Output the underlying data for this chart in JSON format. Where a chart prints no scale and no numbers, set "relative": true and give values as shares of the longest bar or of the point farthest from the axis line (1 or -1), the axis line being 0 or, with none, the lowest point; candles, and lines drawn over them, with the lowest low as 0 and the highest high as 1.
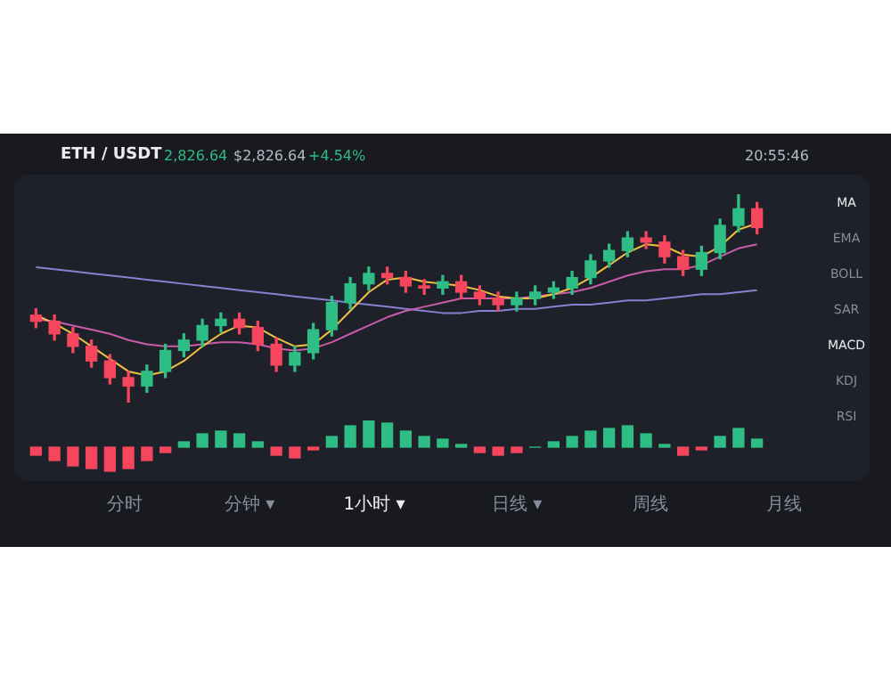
{
  "chart_data": [
    {
      "type": "candlestick",
      "title": "ETH / USDT",
      "relative": true,
      "grid": false,
      "legend": false,
      "categories": [
        null,
        null,
        null,
        null,
        null,
        null,
        null,
        null,
        null,
        null,
        null,
        null,
        null,
        null,
        null,
        null,
        null,
        null,
        null,
        null,
        null,
        null,
        null,
        null,
        null,
        null,
        null,
        null,
        null,
        null,
        null,
        null,
        null,
        null,
        null,
        null,
        null,
        null,
        null,
        null
      ],
      "ohlc": [
        [
          0.42,
          0.45,
          0.36,
          0.39
        ],
        [
          0.39,
          0.42,
          0.3,
          0.33
        ],
        [
          0.33,
          0.36,
          0.24,
          0.27
        ],
        [
          0.27,
          0.3,
          0.17,
          0.2
        ],
        [
          0.2,
          0.23,
          0.09,
          0.12
        ],
        [
          0.12,
          0.15,
          0.0,
          0.08
        ],
        [
          0.08,
          0.18,
          0.05,
          0.15
        ],
        [
          0.15,
          0.28,
          0.12,
          0.25
        ],
        [
          0.25,
          0.33,
          0.22,
          0.3
        ],
        [
          0.3,
          0.4,
          0.27,
          0.37
        ],
        [
          0.37,
          0.43,
          0.34,
          0.4
        ],
        [
          0.4,
          0.43,
          0.33,
          0.36
        ],
        [
          0.36,
          0.39,
          0.25,
          0.28
        ],
        [
          0.28,
          0.31,
          0.15,
          0.18
        ],
        [
          0.18,
          0.27,
          0.15,
          0.24
        ],
        [
          0.24,
          0.38,
          0.21,
          0.35
        ],
        [
          0.35,
          0.51,
          0.32,
          0.48
        ],
        [
          0.48,
          0.6,
          0.45,
          0.57
        ],
        [
          0.57,
          0.65,
          0.54,
          0.62
        ],
        [
          0.62,
          0.65,
          0.57,
          0.6
        ],
        [
          0.6,
          0.63,
          0.53,
          0.56
        ],
        [
          0.56,
          0.59,
          0.52,
          0.55
        ],
        [
          0.55,
          0.61,
          0.52,
          0.58
        ],
        [
          0.58,
          0.61,
          0.5,
          0.53
        ],
        [
          0.53,
          0.56,
          0.47,
          0.5
        ],
        [
          0.5,
          0.53,
          0.44,
          0.47
        ],
        [
          0.47,
          0.53,
          0.44,
          0.5
        ],
        [
          0.5,
          0.56,
          0.47,
          0.53
        ],
        [
          0.53,
          0.58,
          0.5,
          0.55
        ],
        [
          0.55,
          0.63,
          0.52,
          0.6
        ],
        [
          0.6,
          0.71,
          0.57,
          0.68
        ],
        [
          0.68,
          0.76,
          0.65,
          0.73
        ],
        [
          0.73,
          0.82,
          0.7,
          0.79
        ],
        [
          0.79,
          0.82,
          0.74,
          0.77
        ],
        [
          0.77,
          0.8,
          0.67,
          0.7
        ],
        [
          0.7,
          0.73,
          0.61,
          0.64
        ],
        [
          0.64,
          0.75,
          0.61,
          0.72
        ],
        [
          0.72,
          0.88,
          0.69,
          0.85
        ],
        [
          0.85,
          1.0,
          0.82,
          0.93
        ],
        [
          0.93,
          0.96,
          0.81,
          0.84
        ]
      ],
      "series": [
        {
          "type": "line",
          "color": "#f0c040",
          "values": [
            0.42,
            0.38,
            0.33,
            0.27,
            0.21,
            0.15,
            0.13,
            0.15,
            0.2,
            0.27,
            0.33,
            0.37,
            0.36,
            0.31,
            0.27,
            0.28,
            0.35,
            0.44,
            0.53,
            0.59,
            0.6,
            0.58,
            0.57,
            0.56,
            0.54,
            0.51,
            0.5,
            0.5,
            0.52,
            0.55,
            0.6,
            0.66,
            0.72,
            0.76,
            0.75,
            0.71,
            0.7,
            0.75,
            0.83,
            0.86
          ]
        },
        {
          "type": "line",
          "color": "#c85ca8",
          "values": [
            0.4,
            0.39,
            0.37,
            0.35,
            0.33,
            0.3,
            0.28,
            0.27,
            0.27,
            0.28,
            0.29,
            0.29,
            0.28,
            0.26,
            0.25,
            0.26,
            0.29,
            0.33,
            0.37,
            0.41,
            0.44,
            0.46,
            0.48,
            0.5,
            0.5,
            0.5,
            0.5,
            0.51,
            0.52,
            0.53,
            0.55,
            0.58,
            0.61,
            0.63,
            0.64,
            0.64,
            0.66,
            0.7,
            0.74,
            0.76
          ]
        },
        {
          "type": "line",
          "color": "#8a7fd0",
          "values": [
            0.65,
            0.64,
            0.63,
            0.62,
            0.61,
            0.6,
            0.59,
            0.58,
            0.57,
            0.56,
            0.55,
            0.54,
            0.53,
            0.52,
            0.51,
            0.5,
            0.49,
            0.48,
            0.47,
            0.46,
            0.45,
            0.44,
            0.43,
            0.43,
            0.44,
            0.44,
            0.45,
            0.45,
            0.46,
            0.47,
            0.47,
            0.48,
            0.49,
            0.49,
            0.5,
            0.51,
            0.52,
            0.52,
            0.53,
            0.54
          ]
        }
      ],
      "annotations": [
        "2,826.64",
        "$2,826.64",
        "+4.54%",
        "20:55:46",
        "分时",
        "分钟 ▾",
        "1小时 ▾",
        "日线 ▾",
        "周线",
        "月线",
        "MA",
        "EMA",
        "BOLL",
        "SAR",
        "MACD",
        "KDJ",
        "RSI"
      ]
    },
    {
      "type": "bar",
      "relative": true,
      "grid": false,
      "legend": false,
      "categories": [
        null,
        null,
        null,
        null,
        null,
        null,
        null,
        null,
        null,
        null,
        null,
        null,
        null,
        null,
        null,
        null,
        null,
        null,
        null,
        null,
        null,
        null,
        null,
        null,
        null,
        null,
        null,
        null,
        null,
        null,
        null,
        null,
        null,
        null,
        null,
        null,
        null,
        null,
        null,
        null
      ],
      "values": [
        -0.3,
        -0.5,
        -0.7,
        -0.8,
        -0.9,
        -0.8,
        -0.5,
        -0.2,
        0.2,
        0.5,
        0.6,
        0.5,
        0.2,
        -0.3,
        -0.4,
        -0.1,
        0.4,
        0.8,
        1.0,
        0.9,
        0.6,
        0.4,
        0.3,
        0.1,
        -0.2,
        -0.3,
        -0.2,
        0.0,
        0.2,
        0.4,
        0.6,
        0.7,
        0.8,
        0.5,
        0.1,
        -0.3,
        -0.1,
        0.4,
        0.7,
        0.3
      ],
      "colors": [
        "#f6465d",
        "#f6465d",
        "#f6465d",
        "#f6465d",
        "#f6465d",
        "#f6465d",
        "#f6465d",
        "#f6465d",
        "#2ebd85",
        "#2ebd85",
        "#2ebd85",
        "#2ebd85",
        "#2ebd85",
        "#f6465d",
        "#f6465d",
        "#f6465d",
        "#2ebd85",
        "#2ebd85",
        "#2ebd85",
        "#2ebd85",
        "#2ebd85",
        "#2ebd85",
        "#2ebd85",
        "#2ebd85",
        "#f6465d",
        "#f6465d",
        "#f6465d",
        "#2ebd85",
        "#2ebd85",
        "#2ebd85",
        "#2ebd85",
        "#2ebd85",
        "#2ebd85",
        "#2ebd85",
        "#2ebd85",
        "#f6465d",
        "#f6465d",
        "#2ebd85",
        "#2ebd85",
        "#2ebd85"
      ]
    }
  ]
}
